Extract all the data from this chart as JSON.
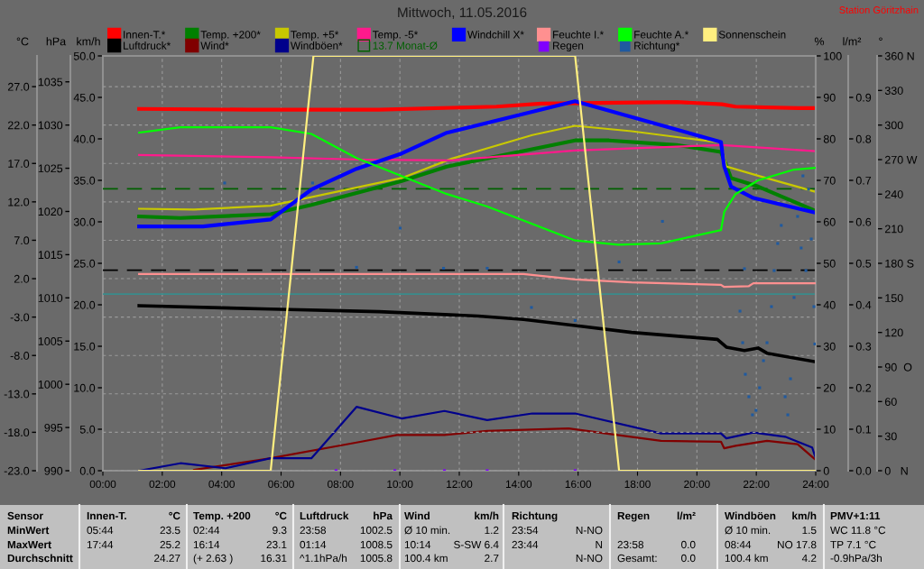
{
  "chart_data": [
    {
      "type": "line",
      "title": "Mittwoch, 11.05.2016",
      "xlim": [
        0,
        24
      ],
      "xticks": [
        {
          "value": 0,
          "label": "00:00"
        },
        {
          "value": 2,
          "label": "02:00"
        },
        {
          "value": 4,
          "label": "04:00"
        },
        {
          "value": 6,
          "label": "06:00"
        },
        {
          "value": 8,
          "label": "08:00"
        },
        {
          "value": 10,
          "label": "10:00"
        },
        {
          "value": 12,
          "label": "12:00"
        },
        {
          "value": 14,
          "label": "14:00"
        },
        {
          "value": 16,
          "label": "16:00"
        },
        {
          "value": 18,
          "label": "18:00"
        },
        {
          "value": 20,
          "label": "20:00"
        },
        {
          "value": 22,
          "label": "22:00"
        },
        {
          "value": 24,
          "label": "24:00"
        }
      ],
      "ylabel": "km/h",
      "ylim": [
        0,
        50
      ],
      "yticks": [
        {
          "value": 0,
          "label": "0.0"
        },
        {
          "value": 5,
          "label": "5.0"
        },
        {
          "value": 10,
          "label": "10.0"
        },
        {
          "value": 15,
          "label": "15.0"
        },
        {
          "value": 20,
          "label": "20.0"
        },
        {
          "value": 25,
          "label": "25.0"
        },
        {
          "value": 30,
          "label": "30.0"
        },
        {
          "value": 35,
          "label": "35.0"
        },
        {
          "value": 40,
          "label": "40.0"
        },
        {
          "value": 45,
          "label": "45.0"
        },
        {
          "value": 50,
          "label": "50.0"
        }
      ],
      "y2label": "°C",
      "y2lim": [
        -23,
        31
      ],
      "y2ticks": [
        {
          "value": -23,
          "label": "-23.0"
        },
        {
          "value": -18,
          "label": "-18.0"
        },
        {
          "value": -13,
          "label": "-13.0"
        },
        {
          "value": -8,
          "label": "-8.0"
        },
        {
          "value": -3,
          "label": "-3.0"
        },
        {
          "value": 2,
          "label": "2.0"
        },
        {
          "value": 7,
          "label": "7.0"
        },
        {
          "value": 12,
          "label": "12.0"
        },
        {
          "value": 17,
          "label": "17.0"
        },
        {
          "value": 22,
          "label": "22.0"
        },
        {
          "value": 27,
          "label": "27.0"
        }
      ],
      "y3label": "hPa",
      "y3lim": [
        990,
        1038
      ],
      "y3ticks": [
        990,
        995,
        1000,
        1005,
        1010,
        1015,
        1020,
        1025,
        1030,
        1035
      ],
      "grid": true,
      "legend": "top",
      "line_style": "solid",
      "series": [
        {
          "name": "Innen-T.*",
          "color": "#ff0000",
          "axis": "y2",
          "x": [
            1.22,
            5.04,
            9.3,
            13.25,
            14.77,
            19.32,
            20.84,
            21.3,
            23.39,
            24.0
          ],
          "values": [
            24.1,
            24.0,
            24.0,
            24.4,
            24.8,
            25.0,
            24.7,
            24.4,
            24.2,
            24.2
          ]
        },
        {
          "name": "Temp. +200*",
          "color": "#008000",
          "axis": "y2",
          "x": [
            1.22,
            2.61,
            5.65,
            7.02,
            10.06,
            11.58,
            15.9,
            17.04,
            19.32,
            20.81,
            21.15,
            22.06,
            24.0
          ],
          "values": [
            10.1,
            9.9,
            10.4,
            11.6,
            14.7,
            16.6,
            20.0,
            20.0,
            19.4,
            18.5,
            15.1,
            14.0,
            10.8
          ]
        },
        {
          "name": "Temp. +5*",
          "color": "#c8c800",
          "axis": "y2",
          "x": [
            1.22,
            3.07,
            5.65,
            6.87,
            10.06,
            11.73,
            14.46,
            15.9,
            17.8,
            20.81,
            20.99,
            22.06,
            24.0
          ],
          "values": [
            11.1,
            11.0,
            11.5,
            12.5,
            15.1,
            17.6,
            20.7,
            21.9,
            21.2,
            19.7,
            16.6,
            15.4,
            13.3
          ]
        },
        {
          "name": "Temp. -5*",
          "color": "#ff1a8c",
          "axis": "y2",
          "x": [
            1.22,
            5.65,
            8.69,
            11.73,
            15.9,
            19.32,
            20.84,
            24.0
          ],
          "values": [
            18.1,
            17.8,
            17.5,
            17.4,
            18.7,
            19.2,
            19.4,
            18.6
          ]
        },
        {
          "name": "Windchill X*",
          "color": "#0000ff",
          "axis": "y2",
          "x": [
            1.22,
            3.37,
            5.65,
            7.02,
            8.54,
            10.06,
            11.58,
            15.9,
            20.81,
            20.92,
            21.15,
            21.9,
            24.0
          ],
          "values": [
            8.8,
            8.8,
            9.7,
            13.6,
            16.3,
            18.3,
            21.0,
            25.1,
            19.8,
            16.6,
            14.0,
            12.5,
            10.6
          ]
        },
        {
          "name": "Luftdruck*",
          "color": "#000000",
          "axis": "y3",
          "x": [
            1.22,
            5.65,
            9.3,
            12.64,
            14.16,
            15.9,
            17.8,
            20.69,
            20.99,
            21.6,
            22.06,
            22.36,
            24.0
          ],
          "values": [
            1009.1,
            1008.7,
            1008.4,
            1007.9,
            1007.5,
            1006.8,
            1006.0,
            1005.2,
            1004.3,
            1003.9,
            1004.2,
            1003.6,
            1002.6
          ]
        },
        {
          "name": "Wind*",
          "color": "#800000",
          "x": [
            3.07,
            5.65,
            8.54,
            9.9,
            11.5,
            12.94,
            15.68,
            18.79,
            20.81,
            20.92,
            21.3,
            22.36,
            23.39,
            24.0
          ],
          "values": [
            0.1,
            1.5,
            3.4,
            4.3,
            4.3,
            4.8,
            5.1,
            3.6,
            3.5,
            2.7,
            3.0,
            3.6,
            3.2,
            1.3
          ]
        },
        {
          "name": "Windböen*",
          "color": "#00008b",
          "x": [
            1.22,
            2.61,
            4.13,
            5.65,
            7.02,
            8.54,
            10.06,
            11.5,
            12.94,
            14.46,
            15.9,
            18.79,
            20.81,
            20.99,
            21.9,
            22.97,
            23.88,
            24.0
          ],
          "values": [
            0.0,
            0.9,
            0.3,
            1.5,
            1.5,
            7.7,
            6.3,
            7.2,
            6.1,
            6.9,
            6.9,
            4.5,
            4.5,
            3.9,
            4.6,
            4.1,
            2.8,
            1.5
          ]
        }
      ],
      "ref_lines": [
        {
          "axis": "y2",
          "value": 13.7,
          "label": "13.7 Monat-Ø",
          "color": "#006000",
          "line_style": "dashed"
        },
        {
          "axis": "y3",
          "value": 1013.2,
          "color": "#000000",
          "line_style": "dashed"
        },
        {
          "axis": "y2",
          "value": 0,
          "color": "#3a8c8c",
          "line_style": "solid"
        }
      ],
      "annotations": [
        "Station Göritzhain",
        "Sensor",
        "Innen-T.",
        "°C",
        "Temp. +200",
        "°C",
        "Luftdruck",
        "hPa",
        "Wind",
        "km/h",
        "Richtung",
        null,
        "Regen",
        "l/m²",
        "Windböen",
        "km/h",
        "PMV+1:11",
        "MinWert",
        "05:44",
        "23.5",
        "02:44",
        "9.3",
        "23:58",
        "1002.5",
        "Ø 10 min.",
        "1.2",
        "23:54",
        "N-NO",
        null,
        null,
        "Ø 10 min.",
        "1.5",
        "WC 11.8 °C",
        "MaxWert",
        "17:44",
        "25.2",
        "16:14",
        "23.1",
        "01:14",
        "1008.5",
        "10:14",
        "S-SW 6.4",
        "23:44",
        "N",
        "23:58",
        "0.0",
        "08:44",
        "NO 17.8",
        "TP 7.1 °C",
        "Durchschnitt",
        null,
        "24.27",
        "(+ 2.63 )",
        "16.31",
        "^1.1hPa/h",
        "1005.8",
        "100.4 km",
        "2.7",
        null,
        "N-NO",
        "Gesamt:",
        "0.0",
        "100.4 km",
        "4.2",
        "-0.9hPa/3h"
      ]
    },
    {
      "type": "line",
      "xlim": [
        0,
        24
      ],
      "tick_labels": "y",
      "legend": "top",
      "line_style": "solid",
      "ylabel": "%",
      "ylim": [
        0,
        100
      ],
      "yticks": [
        0,
        10,
        20,
        30,
        40,
        50,
        60,
        70,
        80,
        90,
        100
      ],
      "y2label": "l/m²",
      "y2lim": [
        0,
        1
      ],
      "y2ticks": [
        {
          "value": 0,
          "label": "0.0"
        },
        {
          "value": 0.1,
          "label": "0.1"
        },
        {
          "value": 0.2,
          "label": "0.2"
        },
        {
          "value": 0.3,
          "label": "0.3"
        },
        {
          "value": 0.4,
          "label": "0.4"
        },
        {
          "value": 0.5,
          "label": "0.5"
        },
        {
          "value": 0.6,
          "label": "0.6"
        },
        {
          "value": 0.7,
          "label": "0.7"
        },
        {
          "value": 0.8,
          "label": "0.8"
        },
        {
          "value": 0.9,
          "label": "0.9"
        }
      ],
      "y3label": "°",
      "y3lim": [
        0,
        360
      ],
      "y3ticks": [
        {
          "value": 0,
          "label": "0   N"
        },
        30,
        60,
        {
          "value": 90,
          "label": "90  O"
        },
        120,
        150,
        {
          "value": 180,
          "label": "180 S"
        },
        210,
        240,
        {
          "value": 270,
          "label": "270 W"
        },
        300,
        330,
        {
          "value": 360,
          "label": "360 N"
        }
      ],
      "series": [
        {
          "name": "Feuchte I.*",
          "color": "#ff9090",
          "x": [
            1.22,
            14.16,
            15.9,
            17.8,
            20.81,
            20.92,
            21.75,
            21.9,
            24.0
          ],
          "values": [
            47.4,
            47.4,
            46.1,
            45.4,
            44.8,
            44.3,
            44.5,
            45.2,
            45.2
          ]
        },
        {
          "name": "Feuchte A.*",
          "color": "#00ff00",
          "x": [
            1.22,
            2.61,
            5.65,
            7.02,
            8.54,
            11.58,
            12.94,
            15.9,
            17.35,
            18.79,
            20.81,
            20.92,
            21.3,
            22.06,
            23.27,
            24.0
          ],
          "values": [
            81.5,
            82.8,
            82.8,
            81.2,
            75.4,
            66.7,
            63.7,
            55.5,
            54.5,
            54.8,
            58.0,
            62.4,
            66.7,
            70.0,
            72.6,
            73.0
          ]
        },
        {
          "name": "Sonnenschein",
          "color": "#ffef80",
          "x": [
            1.22,
            5.65,
            7.09,
            15.9,
            17.38,
            24.0
          ],
          "values": [
            0,
            0,
            100,
            100,
            0,
            0
          ]
        },
        {
          "name": "Regen",
          "color": "#8000ff",
          "axis": "y2",
          "type": "scatter",
          "marker": "square",
          "x": [
            7.85,
            9.83,
            11.5,
            12.94,
            15.9
          ],
          "values": [
            0,
            0,
            0,
            0,
            0
          ]
        },
        {
          "name": "Richtung*",
          "color": "#1f5aa0",
          "axis": "y3",
          "type": "scatter",
          "marker": "square",
          "x": [
            4.1,
            7.06,
            8.54,
            10.01,
            11.47,
            12.94,
            14.43,
            15.9,
            17.38,
            18.84,
            21.45,
            21.54,
            21.6,
            21.63,
            21.75,
            21.87,
            21.99,
            22.11,
            22.24,
            22.36,
            22.51,
            22.6,
            22.72,
            22.84,
            22.97,
            23.06,
            23.15,
            23.27,
            23.39,
            23.51,
            23.57,
            23.67,
            23.76,
            23.85,
            23.94,
            23.97
          ],
          "values": [
            249.7,
            249.7,
            176.5,
            210.5,
            175.7,
            175.7,
            141.7,
            130.3,
            181.2,
            216.4,
            138.5,
            111.1,
            175.3,
            83.7,
            64.2,
            48.5,
            52.4,
            72.0,
            95.5,
            111.1,
            142.4,
            173.7,
            197.2,
            212.9,
            64.2,
            48.5,
            79.8,
            150.3,
            220.7,
            193.3,
            255.9,
            173.7,
            244.2,
            201.1,
            142.4,
            110.0
          ]
        }
      ]
    }
  ]
}
